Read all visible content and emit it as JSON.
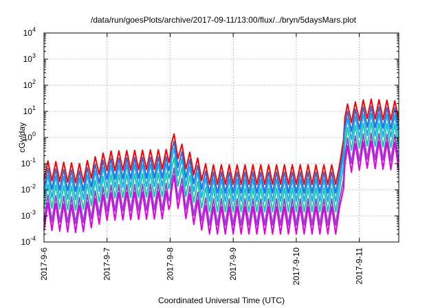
{
  "chart_data": {
    "type": "line",
    "title": "/data/run/goesPlots/archive/2017-09-11/13:00/flux/../bryn/5daysMars.plot",
    "xlabel": "Coordinated Universal Time (UTC)",
    "ylabel": "cGy/day",
    "xlim": [
      "2017-09-06T00:00",
      "2017-09-11T15:00"
    ],
    "ylim": [
      0.0001,
      10000
    ],
    "y_scale": "log",
    "grid": true,
    "x_ticks": [
      "2017-9-6",
      "2017-9-7",
      "2017-9-8",
      "2017-9-9",
      "2017-9-10",
      "2017-9-11"
    ],
    "y_ticks": [
      {
        "value": 0.0001,
        "base": "10",
        "exp": "-4"
      },
      {
        "value": 0.001,
        "base": "10",
        "exp": "-3"
      },
      {
        "value": 0.01,
        "base": "10",
        "exp": "-2"
      },
      {
        "value": 0.1,
        "base": "10",
        "exp": "-1"
      },
      {
        "value": 1,
        "base": "10",
        "exp": "0"
      },
      {
        "value": 10,
        "base": "10",
        "exp": "1"
      },
      {
        "value": 100,
        "base": "10",
        "exp": "2"
      },
      {
        "value": 1000,
        "base": "10",
        "exp": "3"
      },
      {
        "value": 10000,
        "base": "10",
        "exp": "4"
      }
    ],
    "envelope": {
      "x": [
        "2017-09-06T00:00",
        "2017-09-06T14:00",
        "2017-09-07T00:00",
        "2017-09-07T23:30",
        "2017-09-08T00:15",
        "2017-09-08T06:00",
        "2017-09-08T14:00",
        "2017-09-09T00:00",
        "2017-09-10T00:00",
        "2017-09-10T16:30",
        "2017-09-10T18:30",
        "2017-09-11T03:00",
        "2017-09-11T15:00"
      ],
      "y": [
        0.13,
        0.1,
        0.3,
        0.35,
        2.0,
        0.35,
        0.09,
        0.09,
        0.09,
        0.09,
        18,
        30,
        25
      ]
    },
    "series": [
      {
        "color": "#ff0000",
        "offset": 0.0,
        "dip": 0.75
      },
      {
        "color": "#1f6fe0",
        "offset": -0.28,
        "dip": 0.8
      },
      {
        "color": "#1aa8f0",
        "offset": -0.55,
        "dip": 0.85
      },
      {
        "color": "#14c8a8",
        "offset": -0.9,
        "dip": 0.9
      },
      {
        "color": "#8a4ad0",
        "offset": -1.3,
        "dip": 1.0
      },
      {
        "color": "#e000e0",
        "offset": -1.6,
        "dip": 1.05
      }
    ],
    "oscillation_period_hours": 3
  }
}
